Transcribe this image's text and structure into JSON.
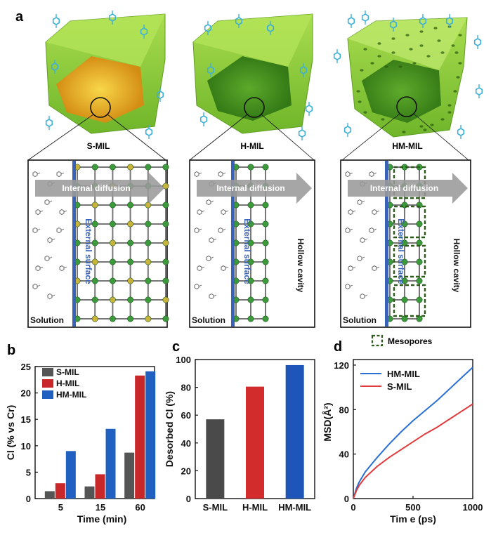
{
  "panel_labels": {
    "a": "a",
    "b": "b",
    "c": "c",
    "d": "d"
  },
  "illustration": {
    "particles": [
      {
        "name": "S-MIL",
        "core_color": "#f0b21a"
      },
      {
        "name": "H-MIL",
        "core_color": "#3f8f1c"
      },
      {
        "name": "HM-MIL",
        "core_color": "#3f8f1c"
      }
    ],
    "insets": [
      {
        "internal": "Internal diffusion",
        "external": "External surface",
        "solution": "Solution",
        "hollow": ""
      },
      {
        "internal": "Internal diffusion",
        "external": "External surface",
        "solution": "Solution",
        "hollow": "Hollow  cavity"
      },
      {
        "internal": "Internal diffusion",
        "external": "External surface",
        "solution": "Solution",
        "hollow": "Hollow  cavity"
      }
    ],
    "mesopores_legend": "Mesopores",
    "colors": {
      "shell": "#8ed13a",
      "node": "#3c9a3c",
      "node_s": "#c8b43a",
      "arrow": "#9a9a9a",
      "surface": "#3a63b8"
    }
  },
  "chart_data": [
    {
      "panel": "b",
      "type": "bar",
      "categories": [
        "5",
        "15",
        "60"
      ],
      "series": [
        {
          "name": "S-MIL",
          "values": [
            1.4,
            2.3,
            8.7
          ],
          "color": "#555555"
        },
        {
          "name": "H-MIL",
          "values": [
            2.9,
            4.6,
            23.3
          ],
          "color": "#c8282a"
        },
        {
          "name": "HM-MIL",
          "values": [
            9.0,
            13.2,
            24.1
          ],
          "color": "#2060c0"
        }
      ],
      "xlabel": "Time (min)",
      "ylabel": "Cl  (% vs Cr)",
      "ylim": [
        0,
        25
      ],
      "yticks": [
        "0",
        "5",
        "10",
        "15",
        "20",
        "25"
      ],
      "legend": "top-left"
    },
    {
      "panel": "c",
      "type": "bar",
      "categories": [
        "S-MIL",
        "H-MIL",
        "HM-MIL"
      ],
      "values": [
        57,
        80.5,
        96
      ],
      "colors": [
        "#4a4a4a",
        "#d22c2c",
        "#1d55b8"
      ],
      "xlabel": "",
      "ylabel": "Desorbed Cl  (%)",
      "ylim": [
        0,
        100
      ],
      "yticks": [
        "0",
        "20",
        "40",
        "60",
        "80",
        "100"
      ]
    },
    {
      "panel": "d",
      "type": "line",
      "series": [
        {
          "name": "HM-MIL",
          "color": "#2a6fd6",
          "x": [
            0,
            25,
            50,
            100,
            200,
            300,
            400,
            500,
            600,
            700,
            800,
            900,
            1000
          ],
          "y": [
            0,
            9,
            15,
            24,
            37,
            49,
            60,
            70,
            79,
            88,
            98,
            108,
            118
          ]
        },
        {
          "name": "S-MIL",
          "color": "#e03a3a",
          "x": [
            0,
            25,
            50,
            100,
            200,
            300,
            400,
            500,
            600,
            700,
            800,
            900,
            1000
          ],
          "y": [
            0,
            7,
            12,
            19,
            29,
            37,
            44,
            51,
            58,
            64,
            71,
            78,
            85
          ]
        }
      ],
      "xlabel": "Tim e (ps)",
      "ylabel": "MSD(Å²)",
      "xlim": [
        0,
        1000
      ],
      "ylim": [
        0,
        125
      ],
      "xticks": [
        "0",
        "500",
        "1000"
      ],
      "yticks": [
        "0",
        "40",
        "80",
        "120"
      ],
      "legend": "top-left"
    }
  ]
}
